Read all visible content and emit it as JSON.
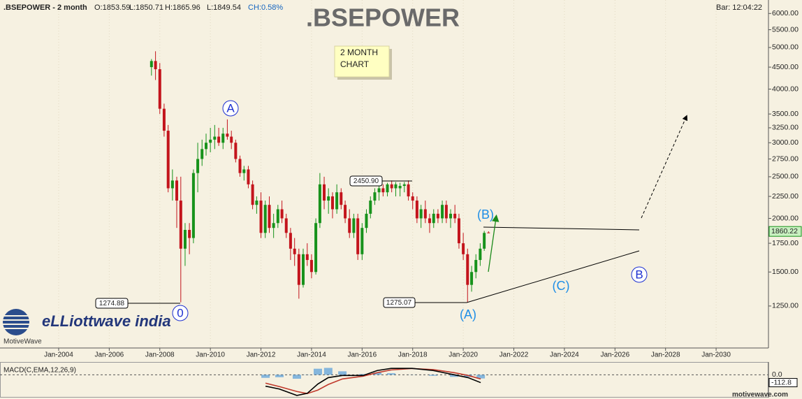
{
  "header": {
    "symbol": ".BSEPOWER - 2 month",
    "open": "O:1853.59",
    "last": "L:1850.71",
    "high": "H:1865.96",
    "low": "L:1849.54",
    "change": "CH:0.58%",
    "bar_time": "Bar: 12:04:22",
    "logo": "eLLiottwave india",
    "brand": "MotiveWave",
    "site": "motivewave.com"
  },
  "chart_data": [
    {
      "type": "candlestick",
      "title": ".BSEPOWER",
      "note": [
        "2 MONTH",
        "CHART"
      ],
      "up_color": "#17921b",
      "down_color": "#c3141c",
      "grid": true,
      "log_scale": true,
      "x": [
        2007.67,
        2007.83,
        2008.0,
        2008.17,
        2008.33,
        2008.5,
        2008.67,
        2008.83,
        2009.0,
        2009.17,
        2009.33,
        2009.5,
        2009.67,
        2009.83,
        2010.0,
        2010.17,
        2010.33,
        2010.5,
        2010.67,
        2010.83,
        2011.0,
        2011.17,
        2011.33,
        2011.5,
        2011.67,
        2011.83,
        2012.0,
        2012.17,
        2012.33,
        2012.5,
        2012.67,
        2012.83,
        2013.0,
        2013.17,
        2013.33,
        2013.5,
        2013.67,
        2013.83,
        2014.0,
        2014.17,
        2014.33,
        2014.5,
        2014.67,
        2014.83,
        2015.0,
        2015.17,
        2015.33,
        2015.5,
        2015.67,
        2015.83,
        2016.0,
        2016.17,
        2016.33,
        2016.5,
        2016.67,
        2016.83,
        2017.0,
        2017.17,
        2017.33,
        2017.5,
        2017.67,
        2017.83,
        2018.0,
        2018.17,
        2018.33,
        2018.5,
        2018.67,
        2018.83,
        2019.0,
        2019.17,
        2019.33,
        2019.5,
        2019.67,
        2019.83,
        2020.0,
        2020.17,
        2020.33,
        2020.5,
        2020.67,
        2020.83,
        2021.0
      ],
      "open": [
        4500,
        4650,
        4450,
        3600,
        3200,
        2350,
        2450,
        2200,
        1700,
        1880,
        1800,
        2550,
        2750,
        2900,
        3000,
        3050,
        3100,
        3000,
        3150,
        3100,
        3000,
        2750,
        2550,
        2600,
        2400,
        2150,
        2200,
        1850,
        2150,
        1900,
        1950,
        2100,
        2000,
        1850,
        1700,
        1650,
        1400,
        1650,
        1600,
        1500,
        1950,
        2400,
        2200,
        2250,
        2100,
        2300,
        2150,
        2000,
        1850,
        2000,
        1650,
        1900,
        2050,
        2200,
        2300,
        2350,
        2300,
        2400,
        2350,
        2350,
        2380,
        2400,
        2250,
        2200,
        2000,
        2100,
        2000,
        1950,
        2050,
        2000,
        2150,
        2000,
        2050,
        2000,
        1750,
        1650,
        1400,
        1500,
        1600,
        1700,
        1853.59
      ],
      "high": [
        4700,
        4900,
        4600,
        3700,
        3300,
        2600,
        2500,
        2500,
        1950,
        1950,
        2600,
        3000,
        3050,
        3150,
        3250,
        3300,
        3250,
        3250,
        3400,
        3200,
        3050,
        2800,
        2650,
        2650,
        2450,
        2250,
        2300,
        2200,
        2250,
        2050,
        2150,
        2200,
        2050,
        1900,
        1800,
        1700,
        1700,
        1750,
        1650,
        2000,
        2550,
        2500,
        2350,
        2300,
        2400,
        2350,
        2200,
        2100,
        2050,
        2050,
        1950,
        2100,
        2250,
        2350,
        2400,
        2400,
        2420,
        2450,
        2430,
        2420,
        2430,
        2450.9,
        2300,
        2250,
        2150,
        2200,
        2050,
        2100,
        2100,
        2200,
        2200,
        2100,
        2150,
        2050,
        1850,
        1700,
        1550,
        1650,
        1750,
        1870,
        1865.96
      ],
      "low": [
        4300,
        4200,
        3500,
        3100,
        2300,
        2200,
        1900,
        1274.88,
        1550,
        1650,
        1750,
        2300,
        2650,
        2800,
        2850,
        2900,
        2950,
        2900,
        3050,
        2900,
        2700,
        2500,
        2450,
        2350,
        2100,
        2050,
        1800,
        1800,
        1850,
        1800,
        1900,
        1950,
        1800,
        1600,
        1550,
        1300,
        1380,
        1550,
        1450,
        1480,
        1900,
        2100,
        2050,
        2000,
        2050,
        2100,
        1950,
        1800,
        1800,
        1600,
        1600,
        1850,
        2000,
        2150,
        2200,
        2250,
        2250,
        2300,
        2250,
        2250,
        2300,
        2200,
        2100,
        1950,
        1900,
        1950,
        1850,
        1900,
        1950,
        1950,
        1950,
        1900,
        1950,
        1700,
        1600,
        1275.07,
        1350,
        1450,
        1550,
        1680,
        1849.54
      ],
      "close": [
        4650,
        4450,
        3600,
        3200,
        2350,
        2450,
        2200,
        1700,
        1880,
        1800,
        2550,
        2750,
        2900,
        3000,
        3050,
        3100,
        3000,
        3150,
        3100,
        3000,
        2750,
        2550,
        2600,
        2400,
        2150,
        2200,
        1850,
        2150,
        1900,
        1950,
        2100,
        2000,
        1850,
        1700,
        1650,
        1400,
        1650,
        1600,
        1500,
        1950,
        2400,
        2200,
        2250,
        2100,
        2300,
        2150,
        2000,
        1850,
        2000,
        1650,
        1900,
        2050,
        2200,
        2300,
        2350,
        2300,
        2400,
        2350,
        2400,
        2380,
        2400,
        2250,
        2200,
        2000,
        2100,
        2000,
        1950,
        2050,
        2000,
        2150,
        2000,
        2050,
        2000,
        1750,
        1650,
        1400,
        1500,
        1600,
        1700,
        1850,
        1850.71
      ],
      "xlim": [
        2001.68,
        2032.07
      ],
      "xticks": [
        {
          "value": 2004,
          "label": "Jan-2004"
        },
        {
          "value": 2006,
          "label": "Jan-2006"
        },
        {
          "value": 2008,
          "label": "Jan-2008"
        },
        {
          "value": 2010,
          "label": "Jan-2010"
        },
        {
          "value": 2012,
          "label": "Jan-2012"
        },
        {
          "value": 2014,
          "label": "Jan-2014"
        },
        {
          "value": 2016,
          "label": "Jan-2016"
        },
        {
          "value": 2018,
          "label": "Jan-2018"
        },
        {
          "value": 2020,
          "label": "Jan-2020"
        },
        {
          "value": 2022,
          "label": "Jan-2022"
        },
        {
          "value": 2024,
          "label": "Jan-2024"
        },
        {
          "value": 2026,
          "label": "Jan-2026"
        },
        {
          "value": 2028,
          "label": "Jan-2028"
        },
        {
          "value": 2030,
          "label": "Jan-2030"
        }
      ],
      "ylim": [
        998,
        6450
      ],
      "yticks": [
        {
          "value": 1250,
          "label": "1250.00"
        },
        {
          "value": 1500,
          "label": "1500.00"
        },
        {
          "value": 1750,
          "label": "1750.00"
        },
        {
          "value": 2000,
          "label": "2000.00"
        },
        {
          "value": 2250,
          "label": "2250.00"
        },
        {
          "value": 2500,
          "label": "2500.00"
        },
        {
          "value": 2750,
          "label": "2750.00"
        },
        {
          "value": 3000,
          "label": "3000.00"
        },
        {
          "value": 3250,
          "label": "3250.00"
        },
        {
          "value": 3500,
          "label": "3500.00"
        },
        {
          "value": 4000,
          "label": "4000.00"
        },
        {
          "value": 4500,
          "label": "4500.00"
        },
        {
          "value": 5000,
          "label": "5000.00"
        },
        {
          "value": 5500,
          "label": "5500.00"
        },
        {
          "value": 6000,
          "label": "6000.00"
        }
      ],
      "current_label": "1860.22",
      "annotations": {
        "wave_A": "A",
        "wave_0": "0",
        "wave_pA": "(A)",
        "wave_pB": "(B)",
        "wave_pC": "(C)",
        "wave_B": "B",
        "price_low_2008": "1274.88",
        "price_high_2017": "2450.90",
        "price_low_2020": "1275.07"
      }
    },
    {
      "type": "macd",
      "title": "MACD(C,EMA,12,26,9)",
      "x": [
        2012.18,
        2012.73,
        2013.42,
        2013.83,
        2014.25,
        2014.66,
        2015.22,
        2016.04,
        2016.6,
        2017.15,
        2017.98,
        2018.81,
        2019.64,
        2020.19,
        2020.69
      ],
      "series": [
        {
          "style": "bar",
          "color": "#3a8fd8",
          "values": [
            -44,
            -35,
            -57,
            3,
            87,
            99,
            50,
            10,
            31,
            22,
            2,
            -14,
            -30,
            -31,
            -53
          ]
        },
        {
          "style": "line",
          "color": "#c0392b",
          "values": [
            -120,
            -170,
            -240,
            -270,
            -220,
            -140,
            -60,
            -20,
            30,
            70,
            90,
            75,
            30,
            -10,
            -60
          ]
        },
        {
          "style": "line",
          "color": "#000000",
          "values": [
            -164,
            -205,
            -297,
            -267,
            -133,
            -41,
            -10,
            -10,
            61,
            92,
            92,
            61,
            0,
            -41,
            -112.8
          ]
        }
      ],
      "ylim": [
        -318,
        174
      ],
      "yticks": [
        {
          "value": 0,
          "label": "0.0"
        }
      ],
      "current_label": "-112.8"
    }
  ]
}
